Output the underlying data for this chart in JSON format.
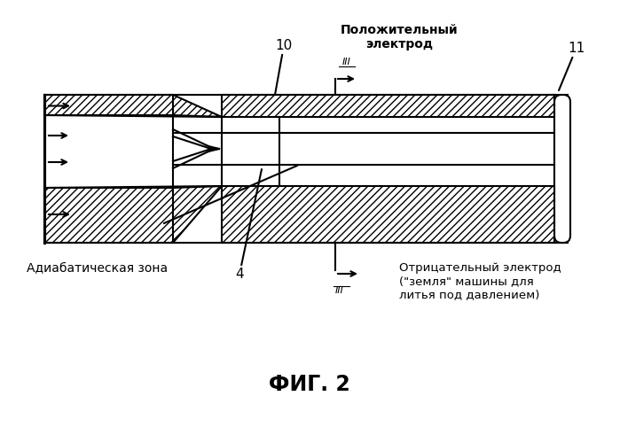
{
  "title": "ФИГ. 2",
  "label_10": "10",
  "label_11": "11",
  "label_4": "4",
  "label_pos_electrode": "Положительный\nэлектрод",
  "label_neg_electrode": "Отрицательный электрод\n(\"земля\" машины для\nлитья под давлением)",
  "label_adiab": "Адиабатическая зона",
  "bg_color": "#ffffff",
  "line_color": "#000000",
  "fig_width": 6.99,
  "fig_height": 4.82,
  "dpi": 100
}
